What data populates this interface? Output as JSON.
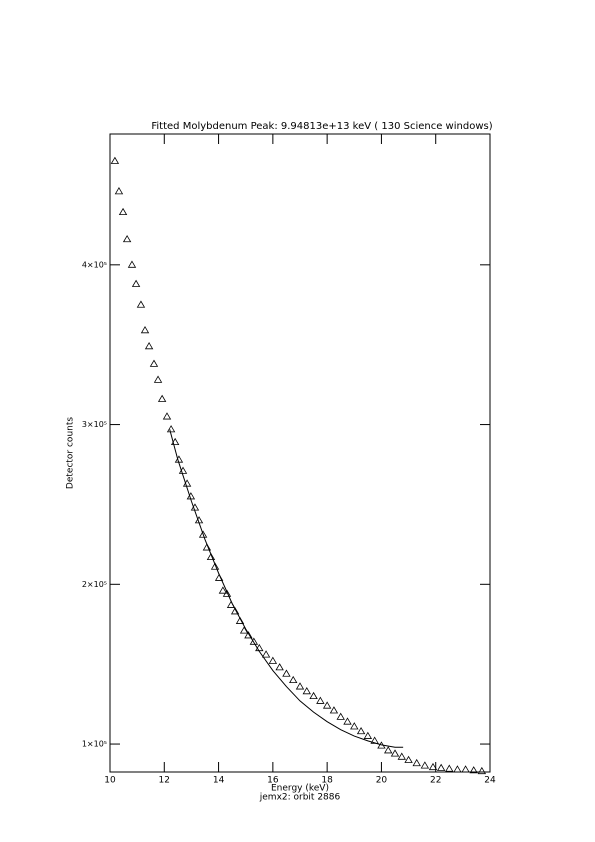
{
  "chart_data": {
    "type": "scatter",
    "title": "Fitted Molybdenum Peak:   9.94813e+13 keV (        130 Science windows)",
    "x_label": "Energy (keV)",
    "y_label": "Detector counts",
    "subtitle": "jemx2: orbit 2886",
    "xlim": [
      10,
      24
    ],
    "xticks": [
      10,
      12,
      14,
      16,
      18,
      20,
      22,
      24
    ],
    "ylim": [
      82500,
      481900
    ],
    "yticks": [
      {
        "value": 100000,
        "label": "1×10⁵"
      },
      {
        "value": 200000,
        "label": "2×10⁵"
      },
      {
        "value": 300000,
        "label": "3×10⁵"
      },
      {
        "value": 400000,
        "label": "4×10⁵"
      }
    ],
    "series": [
      {
        "marker": "triangle",
        "color": "#000000",
        "x": [
          10.18,
          10.33,
          10.48,
          10.63,
          10.81,
          10.96,
          11.14,
          11.29,
          11.44,
          11.62,
          11.77,
          11.92,
          12.1,
          12.25,
          12.4,
          12.54,
          12.69,
          12.84,
          12.98,
          13.13,
          13.28,
          13.43,
          13.57,
          13.72,
          13.87,
          14.02,
          14.16,
          14.31,
          14.46,
          14.61,
          14.79,
          14.94,
          15.1,
          15.3,
          15.5,
          15.75,
          16.0,
          16.25,
          16.5,
          16.75,
          17.0,
          17.25,
          17.5,
          17.75,
          18.0,
          18.25,
          18.5,
          18.75,
          19.0,
          19.25,
          19.5,
          19.75,
          20.0,
          20.25,
          20.5,
          20.75,
          21.0,
          21.3,
          21.6,
          21.9,
          22.2,
          22.5,
          22.8,
          23.1,
          23.4,
          23.7
        ],
        "values": [
          465000,
          446000,
          433000,
          416000,
          400000,
          388000,
          375000,
          359000,
          349000,
          338000,
          328000,
          316000,
          305000,
          297000,
          289000,
          278000,
          271000,
          263000,
          255000,
          248000,
          240000,
          231000,
          223000,
          217000,
          211000,
          204000,
          196000,
          194000,
          187000,
          183000,
          177000,
          171000,
          168000,
          164000,
          160000,
          156000,
          152000,
          148000,
          144000,
          140000,
          136000,
          133000,
          130000,
          127000,
          124000,
          121000,
          117000,
          114000,
          111000,
          108000,
          105000,
          102000,
          99000,
          96000,
          94000,
          92000,
          90000,
          88000,
          86500,
          85500,
          85000,
          84500,
          84000,
          84000,
          83500,
          83000
        ]
      },
      {
        "marker": "line",
        "color": "#000000",
        "x": [
          12.2,
          12.5,
          13.0,
          13.5,
          14.0,
          14.5,
          15.0,
          15.5,
          16.0,
          16.5,
          17.0,
          17.5,
          18.0,
          18.5,
          19.0,
          19.5,
          20.0,
          20.5,
          20.8
        ],
        "values": [
          297000,
          278000,
          252000,
          228000,
          207000,
          188000,
          172000,
          158000,
          146000,
          136000,
          127000,
          120000,
          114000,
          109000,
          105000,
          102000,
          99500,
          98000,
          98000
        ]
      }
    ]
  }
}
